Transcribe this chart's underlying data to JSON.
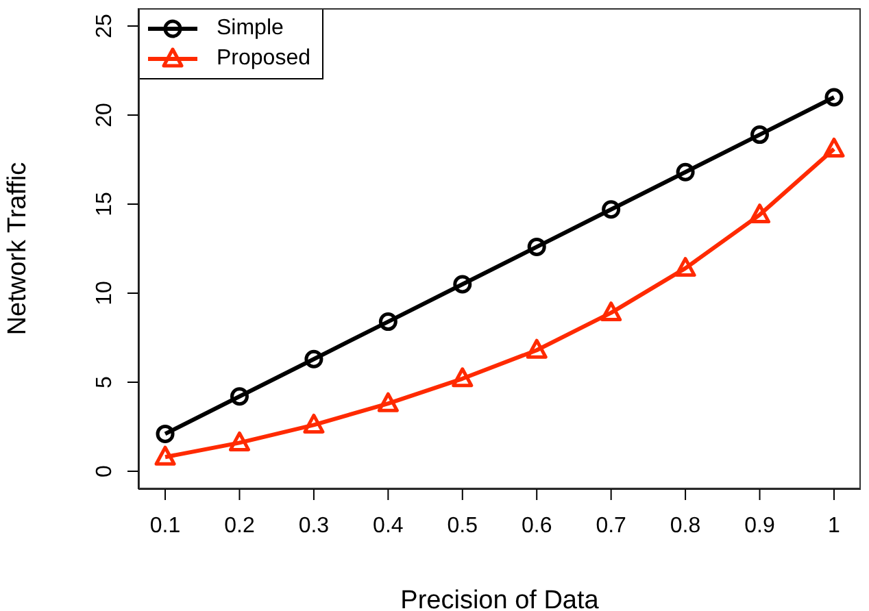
{
  "chart_data": {
    "type": "line",
    "xlabel": "Precision of Data",
    "ylabel": "Network Traffic",
    "x": [
      0.1,
      0.2,
      0.3,
      0.4,
      0.5,
      0.6,
      0.7,
      0.8,
      0.9,
      1
    ],
    "series": [
      {
        "name": "Simple",
        "color": "#000000",
        "marker": "circle",
        "values": [
          2.1,
          4.2,
          6.3,
          8.4,
          10.5,
          12.6,
          14.7,
          16.8,
          18.9,
          21
        ]
      },
      {
        "name": "Proposed",
        "color": "#ff2a00",
        "marker": "triangle",
        "values": [
          0.8,
          1.6,
          2.6,
          3.8,
          5.2,
          6.8,
          8.9,
          11.4,
          14.4,
          18.1
        ]
      }
    ],
    "xlim": [
      0.064,
      1.036
    ],
    "xticks": [
      0.1,
      0.2,
      0.3,
      0.4,
      0.5,
      0.6,
      0.7,
      0.8,
      0.9,
      1
    ],
    "ylim": [
      -1,
      26
    ],
    "yticks": [
      0,
      5,
      10,
      15,
      20,
      25
    ],
    "grid": false,
    "legend": "top left",
    "line_style": "solid"
  }
}
